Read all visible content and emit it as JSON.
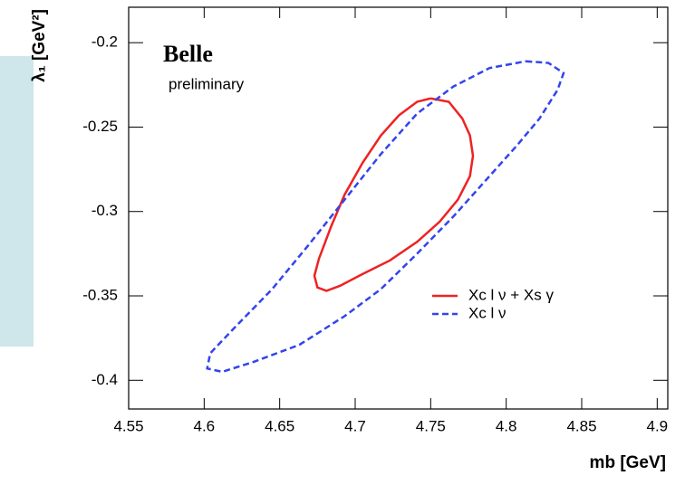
{
  "chart_data": {
    "type": "line",
    "xlabel": "mb [GeV]",
    "ylabel": "λ₁ [GeV²]",
    "annotations": [
      "Belle",
      "preliminary"
    ],
    "xlim": [
      4.55,
      4.907
    ],
    "xticks": [
      4.55,
      4.6,
      4.65,
      4.7,
      4.75,
      4.8,
      4.85,
      4.9
    ],
    "ylim": [
      -0.417,
      -0.179
    ],
    "yticks": [
      -0.2,
      -0.25,
      -0.3,
      -0.35,
      -0.4
    ],
    "legend": "lower right",
    "series": [
      {
        "name": "Xc l ν + Xs γ",
        "color": "#ee2222",
        "style": "solid",
        "x": [
          4.75,
          4.762,
          4.771,
          4.776,
          4.778,
          4.776,
          4.768,
          4.756,
          4.741,
          4.723,
          4.705,
          4.69,
          4.681,
          4.675,
          4.673,
          4.676,
          4.684,
          4.693,
          4.705,
          4.717,
          4.729,
          4.741,
          4.75
        ],
        "values": [
          -0.233,
          -0.235,
          -0.245,
          -0.255,
          -0.267,
          -0.279,
          -0.293,
          -0.306,
          -0.318,
          -0.329,
          -0.337,
          -0.344,
          -0.347,
          -0.345,
          -0.338,
          -0.328,
          -0.309,
          -0.29,
          -0.271,
          -0.255,
          -0.243,
          -0.235,
          -0.233
        ]
      },
      {
        "name": "Xc l ν",
        "color": "#3344ee",
        "style": "dashed",
        "x": [
          4.813,
          4.828,
          4.838,
          4.834,
          4.822,
          4.807,
          4.789,
          4.765,
          4.741,
          4.717,
          4.693,
          4.663,
          4.633,
          4.612,
          4.602,
          4.604,
          4.621,
          4.645,
          4.669,
          4.693,
          4.717,
          4.741,
          4.765,
          4.789,
          4.813
        ],
        "values": [
          -0.211,
          -0.212,
          -0.218,
          -0.228,
          -0.245,
          -0.261,
          -0.279,
          -0.303,
          -0.325,
          -0.346,
          -0.362,
          -0.379,
          -0.389,
          -0.395,
          -0.393,
          -0.384,
          -0.368,
          -0.346,
          -0.32,
          -0.293,
          -0.266,
          -0.242,
          -0.226,
          -0.215,
          -0.211
        ]
      }
    ]
  }
}
